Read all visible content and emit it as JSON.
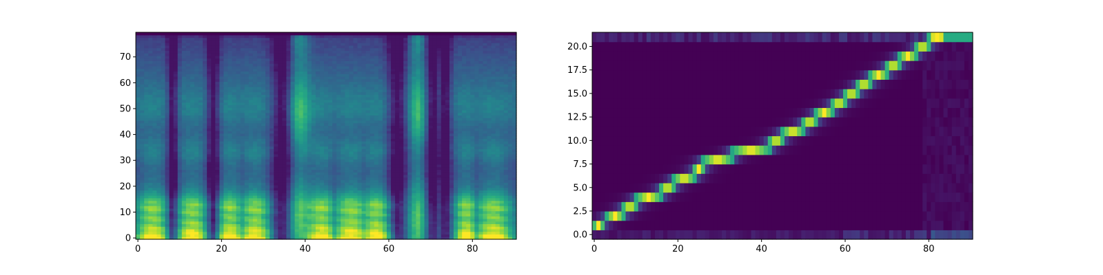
{
  "chart_data": [
    {
      "type": "heatmap",
      "title": "",
      "xlabel": "",
      "ylabel": "",
      "colormap": "viridis",
      "x_range": [
        -0.5,
        90.5
      ],
      "y_range": [
        -0.5,
        79.5
      ],
      "x_ticks": [
        0,
        20,
        40,
        60,
        80
      ],
      "x_tick_labels": [
        "0",
        "20",
        "40",
        "60",
        "80"
      ],
      "y_ticks": [
        0,
        10,
        20,
        30,
        40,
        50,
        60,
        70
      ],
      "y_tick_labels": [
        "0",
        "10",
        "20",
        "30",
        "40",
        "50",
        "60",
        "70"
      ],
      "grid": false,
      "description_values": "mel spectrogram: bright (yellow) energy at bins 0-15 in frames 0-32, 40-58, 77-90; dark vertical gaps near frames 8, 18, 33-36, 63-70, 72-74; bright vertical streaks at frames 37-42 and 65-69"
    },
    {
      "type": "heatmap",
      "title": "",
      "xlabel": "",
      "ylabel": "",
      "colormap": "viridis",
      "x_range": [
        -0.5,
        90.5
      ],
      "y_range": [
        -0.5,
        21.5
      ],
      "x_ticks": [
        0,
        20,
        40,
        60,
        80
      ],
      "x_tick_labels": [
        "0",
        "20",
        "40",
        "60",
        "80"
      ],
      "y_ticks": [
        0,
        2.5,
        5,
        7.5,
        10,
        12.5,
        15,
        17.5,
        20
      ],
      "y_tick_labels": [
        "0.0",
        "2.5",
        "5.0",
        "7.5",
        "10.0",
        "12.5",
        "15.0",
        "17.5",
        "20.0"
      ],
      "grid": false,
      "alignment_path": [
        {
          "token": 1,
          "frames": [
            0,
            2
          ]
        },
        {
          "token": 2,
          "frames": [
            3,
            7
          ]
        },
        {
          "token": 3,
          "frames": [
            7,
            10
          ]
        },
        {
          "token": 4,
          "frames": [
            10,
            16
          ]
        },
        {
          "token": 5,
          "frames": [
            16,
            19
          ]
        },
        {
          "token": 6,
          "frames": [
            19,
            24
          ]
        },
        {
          "token": 7,
          "frames": [
            24,
            26
          ]
        },
        {
          "token": 8,
          "frames": [
            26,
            33
          ]
        },
        {
          "token": 9,
          "frames": [
            33,
            42
          ]
        },
        {
          "token": 10,
          "frames": [
            42,
            45
          ]
        },
        {
          "token": 11,
          "frames": [
            45,
            50
          ]
        },
        {
          "token": 12,
          "frames": [
            50,
            53
          ]
        },
        {
          "token": 13,
          "frames": [
            53,
            57
          ]
        },
        {
          "token": 14,
          "frames": [
            57,
            60
          ]
        },
        {
          "token": 15,
          "frames": [
            60,
            63
          ]
        },
        {
          "token": 16,
          "frames": [
            63,
            66
          ]
        },
        {
          "token": 17,
          "frames": [
            66,
            70
          ]
        },
        {
          "token": 18,
          "frames": [
            70,
            73
          ]
        },
        {
          "token": 19,
          "frames": [
            73,
            77
          ]
        },
        {
          "token": 20,
          "frames": [
            77,
            80
          ]
        },
        {
          "token": 21,
          "frames": [
            80,
            84
          ]
        }
      ],
      "description_values": "attention alignment: diagonal bright band from token 1 at frame 0 to token 21 at frame ~82; token 0 and token 21 rows carry weak background weight; token 21 saturates (teal) after frame 84"
    }
  ]
}
